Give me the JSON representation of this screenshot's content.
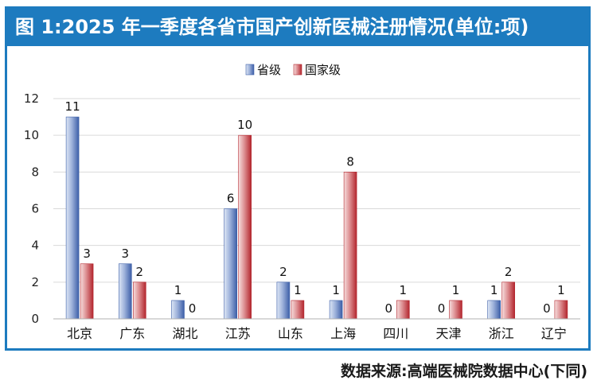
{
  "title": "图 1:2025 年一季度各省市国产创新医械注册情况(单位:项)",
  "source": "数据来源:高端医械院数据中心(下同)",
  "colors": {
    "province": "#3d5fa8",
    "national": "#b3262e",
    "frame": "#1d7bbf"
  },
  "chart_data": {
    "type": "bar",
    "categories": [
      "北京",
      "广东",
      "湖北",
      "江苏",
      "山东",
      "上海",
      "四川",
      "天津",
      "浙江",
      "辽宁"
    ],
    "series": [
      {
        "name": "省级",
        "values": [
          11,
          3,
          1,
          6,
          2,
          1,
          0,
          0,
          1,
          0
        ]
      },
      {
        "name": "国家级",
        "values": [
          3,
          2,
          0,
          10,
          1,
          8,
          1,
          1,
          2,
          1
        ]
      }
    ],
    "ylim": [
      0,
      12
    ],
    "yticks": [
      "0",
      "2",
      "4",
      "6",
      "8",
      "10",
      "12"
    ],
    "legend": "top-center",
    "grid": true
  }
}
